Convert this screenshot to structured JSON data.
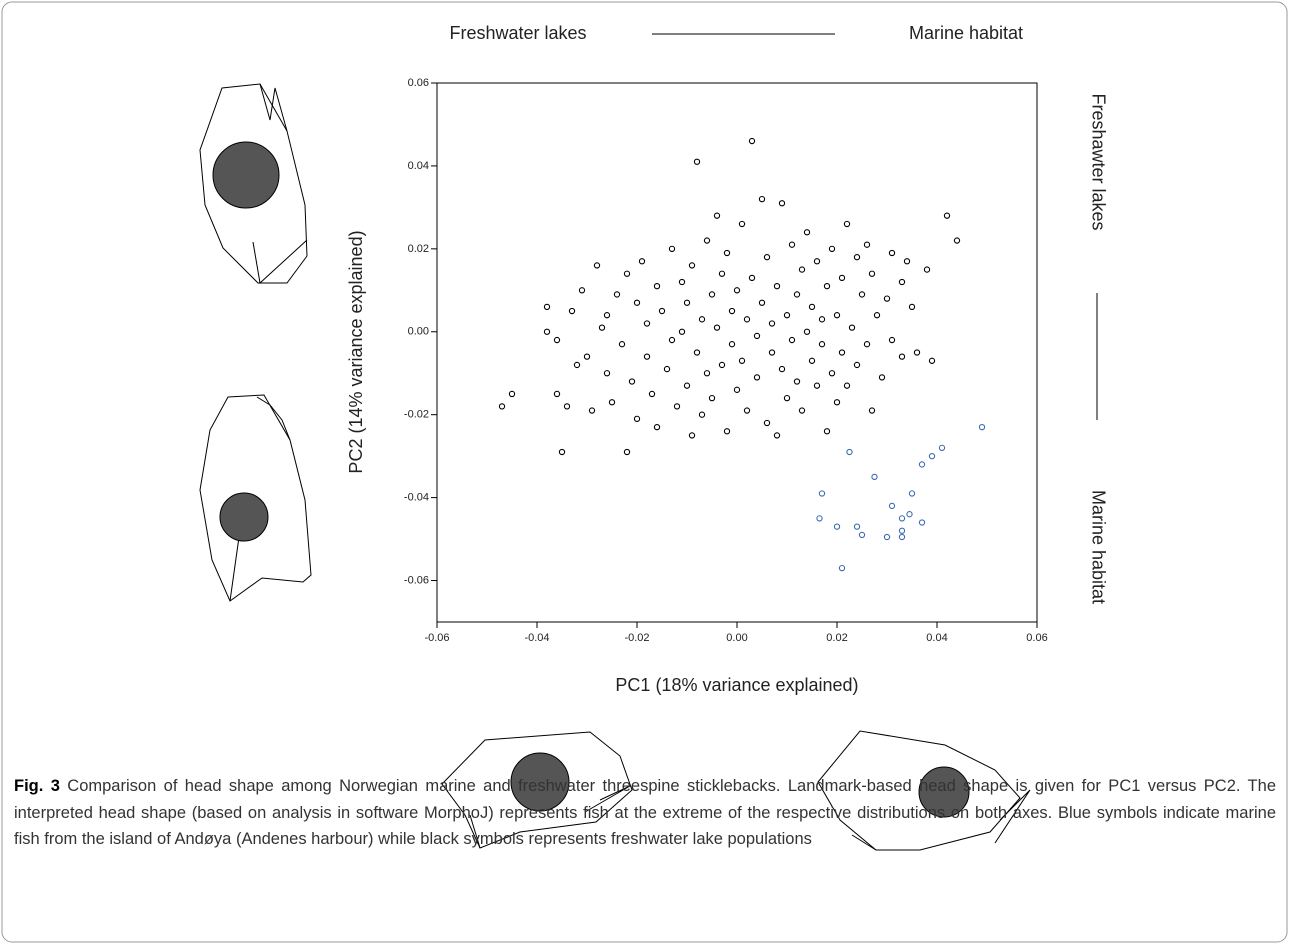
{
  "chart_data": {
    "type": "scatter",
    "annotations": {
      "top_left": "Freshwater lakes",
      "top_right": "Marine habitat",
      "right_top": "Freshawter lakes",
      "right_bottom": "Marine habitat"
    },
    "x_label": "PC1 (18% variance explained)",
    "y_label": "PC2 (14% variance explained)",
    "xlim": [
      -0.06,
      0.06
    ],
    "ylim": [
      -0.07,
      0.06
    ],
    "xticks": [
      -0.06,
      -0.04,
      -0.02,
      {
        "value": 0,
        "label": "0.00"
      },
      0.02,
      0.04,
      0.06
    ],
    "yticks": [
      0.06,
      0.04,
      0.02,
      {
        "value": 0,
        "label": "0.00"
      },
      -0.02,
      -0.04,
      -0.06
    ],
    "grid": false,
    "series": [
      {
        "color": "#000000",
        "x": [
          -0.047,
          -0.045,
          -0.038,
          -0.038,
          -0.035,
          -0.036,
          -0.034,
          -0.036,
          -0.033,
          -0.032,
          -0.031,
          -0.03,
          -0.029,
          -0.028,
          -0.027,
          -0.026,
          -0.026,
          -0.025,
          -0.024,
          -0.023,
          -0.022,
          -0.022,
          -0.021,
          -0.02,
          -0.02,
          -0.019,
          -0.018,
          -0.018,
          -0.017,
          -0.016,
          -0.016,
          -0.015,
          -0.014,
          -0.013,
          -0.013,
          -0.012,
          -0.011,
          -0.011,
          -0.01,
          -0.01,
          -0.009,
          -0.009,
          -0.008,
          -0.008,
          -0.007,
          -0.007,
          -0.006,
          -0.006,
          -0.005,
          -0.005,
          -0.004,
          -0.004,
          -0.003,
          -0.003,
          -0.002,
          -0.002,
          -0.001,
          -0.001,
          0.0,
          0.0,
          0.001,
          0.001,
          0.002,
          0.002,
          0.003,
          0.003,
          0.004,
          0.004,
          0.005,
          0.005,
          0.006,
          0.006,
          0.007,
          0.007,
          0.008,
          0.008,
          0.009,
          0.009,
          0.01,
          0.01,
          0.011,
          0.011,
          0.012,
          0.012,
          0.013,
          0.013,
          0.014,
          0.014,
          0.015,
          0.015,
          0.016,
          0.016,
          0.017,
          0.017,
          0.018,
          0.018,
          0.019,
          0.019,
          0.02,
          0.02,
          0.021,
          0.021,
          0.022,
          0.022,
          0.023,
          0.024,
          0.024,
          0.025,
          0.026,
          0.026,
          0.027,
          0.027,
          0.028,
          0.029,
          0.03,
          0.031,
          0.031,
          0.033,
          0.033,
          0.034,
          0.035,
          0.036,
          0.038,
          0.039,
          0.042,
          0.044
        ],
        "y": [
          -0.018,
          -0.015,
          0.006,
          0.0,
          -0.029,
          -0.015,
          -0.018,
          -0.002,
          0.005,
          -0.008,
          0.01,
          -0.006,
          -0.019,
          0.016,
          0.001,
          -0.01,
          0.004,
          -0.017,
          0.009,
          -0.003,
          -0.029,
          0.014,
          -0.012,
          0.007,
          -0.021,
          0.017,
          -0.006,
          0.002,
          -0.015,
          0.011,
          -0.023,
          0.005,
          -0.009,
          0.02,
          -0.002,
          -0.018,
          0.012,
          0.0,
          -0.013,
          0.007,
          -0.025,
          0.016,
          0.041,
          -0.005,
          0.003,
          -0.02,
          0.022,
          -0.01,
          0.009,
          -0.016,
          0.028,
          0.001,
          -0.008,
          0.014,
          -0.024,
          0.019,
          0.005,
          -0.003,
          -0.014,
          0.01,
          0.026,
          -0.007,
          0.003,
          -0.019,
          0.046,
          0.013,
          -0.001,
          -0.011,
          0.032,
          0.007,
          -0.022,
          0.018,
          -0.005,
          0.002,
          -0.025,
          0.011,
          0.031,
          -0.009,
          0.004,
          -0.016,
          0.021,
          -0.002,
          0.009,
          -0.012,
          0.015,
          -0.019,
          0.0,
          0.024,
          -0.007,
          0.006,
          0.017,
          -0.013,
          0.003,
          -0.003,
          -0.024,
          0.011,
          -0.01,
          0.02,
          0.004,
          -0.017,
          0.013,
          -0.005,
          0.026,
          -0.013,
          0.001,
          0.018,
          -0.008,
          0.009,
          -0.003,
          0.021,
          -0.019,
          0.014,
          0.004,
          -0.011,
          0.008,
          0.019,
          -0.002,
          0.012,
          -0.006,
          0.017,
          0.006,
          -0.005,
          0.015,
          -0.007,
          0.028,
          0.022
        ]
      },
      {
        "color": "#3d6bb3",
        "x": [
          0.049,
          0.041,
          0.039,
          0.037,
          0.035,
          0.0345,
          0.033,
          0.037,
          0.031,
          0.033,
          0.033,
          0.03,
          0.0275,
          0.0225,
          0.017,
          0.0165,
          0.02,
          0.024,
          0.025,
          0.021
        ],
        "y": [
          -0.023,
          -0.028,
          -0.03,
          -0.032,
          -0.039,
          -0.044,
          -0.045,
          -0.046,
          -0.042,
          -0.048,
          -0.0495,
          -0.0495,
          -0.035,
          -0.029,
          -0.039,
          -0.045,
          -0.047,
          -0.047,
          -0.049,
          -0.057
        ]
      }
    ],
    "caption": {
      "label": "Fig. 3",
      "text": "Comparison of head shape among Norwegian marine and freshwater threespine sticklebacks. Landmark-based head shape is given for PC1 versus PC2. The interpreted head shape (based on analysis in software MorphoJ) represents fish at the extreme of the respective distributions on both axes. Blue symbols indicate marine fish from the island of Andøya (Andenes harbour) while black symbols represents freshwater lake populations"
    }
  }
}
